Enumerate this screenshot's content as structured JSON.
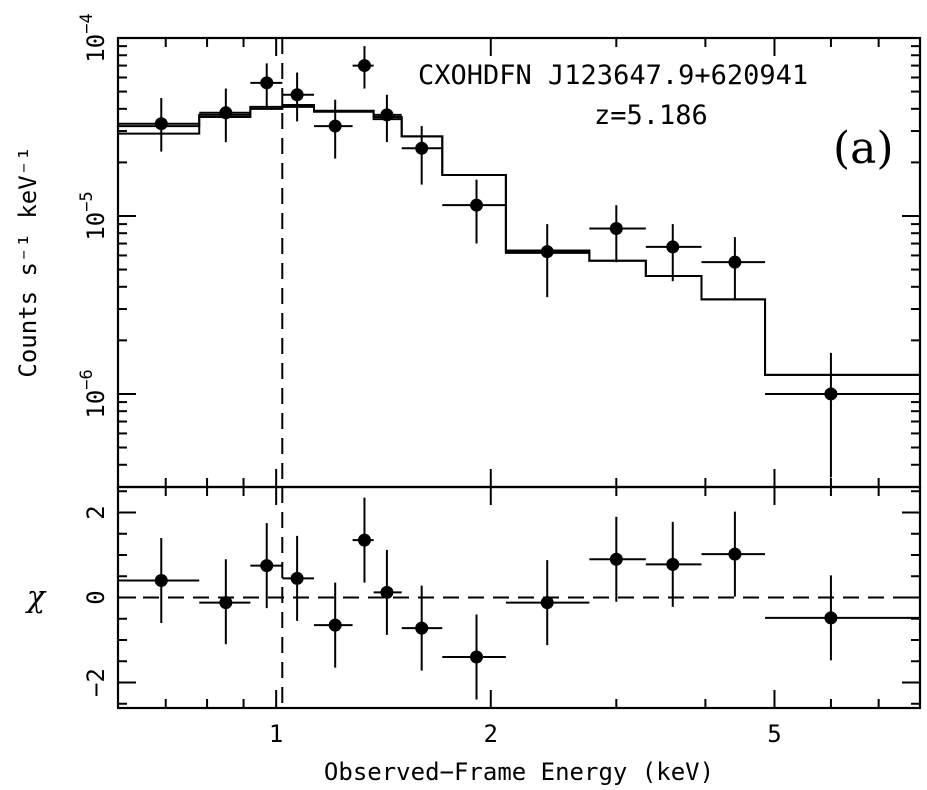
{
  "chart_data": [
    {
      "panel": "spectrum",
      "type": "scatter",
      "ylabel": "Counts s⁻¹ keV⁻¹",
      "ytick_base": "10",
      "yticks": [
        {
          "value": 1e-06,
          "exp": "−6"
        },
        {
          "value": 1e-05,
          "exp": "−5"
        },
        {
          "value": 0.0001,
          "exp": "−4"
        }
      ],
      "ylim": [
        3e-07,
        0.0001
      ],
      "yscale": "log",
      "xscale": "log",
      "xlim": [
        0.6,
        8.0
      ],
      "annotations": {
        "source": "CXOHDFN J123647.9+620941",
        "redshift": "z=5.186",
        "panel_label": "(a)"
      },
      "vline_x": 1.02,
      "series": [
        {
          "kind": "data_points",
          "points": [
            {
              "x": 0.69,
              "xlo": 0.6,
              "xhi": 0.78,
              "y": 3.3e-05,
              "ylo": 2.3e-05,
              "yhi": 4.6e-05
            },
            {
              "x": 0.85,
              "xlo": 0.78,
              "xhi": 0.92,
              "y": 3.8e-05,
              "ylo": 2.6e-05,
              "yhi": 5.2e-05
            },
            {
              "x": 0.97,
              "xlo": 0.92,
              "xhi": 1.02,
              "y": 5.6e-05,
              "ylo": 4e-05,
              "yhi": 7.2e-05
            },
            {
              "x": 1.07,
              "xlo": 1.02,
              "xhi": 1.13,
              "y": 4.8e-05,
              "ylo": 3.4e-05,
              "yhi": 6.4e-05
            },
            {
              "x": 1.21,
              "xlo": 1.13,
              "xhi": 1.28,
              "y": 3.2e-05,
              "ylo": 2.1e-05,
              "yhi": 4.5e-05
            },
            {
              "x": 1.33,
              "xlo": 1.28,
              "xhi": 1.37,
              "y": 7e-05,
              "ylo": 5.2e-05,
              "yhi": 9e-05
            },
            {
              "x": 1.43,
              "xlo": 1.37,
              "xhi": 1.5,
              "y": 3.7e-05,
              "ylo": 2.6e-05,
              "yhi": 4.8e-05
            },
            {
              "x": 1.6,
              "xlo": 1.5,
              "xhi": 1.71,
              "y": 2.4e-05,
              "ylo": 1.5e-05,
              "yhi": 3.2e-05
            },
            {
              "x": 1.91,
              "xlo": 1.71,
              "xhi": 2.1,
              "y": 1.15e-05,
              "ylo": 7e-06,
              "yhi": 1.6e-05
            },
            {
              "x": 2.4,
              "xlo": 2.1,
              "xhi": 2.75,
              "y": 6.3e-06,
              "ylo": 3.5e-06,
              "yhi": 9e-06
            },
            {
              "x": 3.0,
              "xlo": 2.75,
              "xhi": 3.3,
              "y": 8.5e-06,
              "ylo": 5.5e-06,
              "yhi": 1.15e-05
            },
            {
              "x": 3.6,
              "xlo": 3.3,
              "xhi": 3.95,
              "y": 6.7e-06,
              "ylo": 4.3e-06,
              "yhi": 9e-06
            },
            {
              "x": 4.4,
              "xlo": 3.95,
              "xhi": 4.85,
              "y": 5.5e-06,
              "ylo": 3.4e-06,
              "yhi": 7.6e-06
            },
            {
              "x": 6.0,
              "xlo": 4.85,
              "xhi": 8.0,
              "y": 1e-06,
              "ylo": 3.4e-07,
              "yhi": 1.7e-06
            }
          ]
        },
        {
          "kind": "model_step_upper",
          "steps": [
            {
              "x0": 0.6,
              "x1": 0.78,
              "y": 3.2e-05
            },
            {
              "x0": 0.78,
              "x1": 0.92,
              "y": 3.7e-05
            },
            {
              "x0": 0.92,
              "x1": 1.02,
              "y": 4.1e-05
            },
            {
              "x0": 1.02,
              "x1": 1.13,
              "y": 4.2e-05
            },
            {
              "x0": 1.13,
              "x1": 1.37,
              "y": 3.9e-05
            },
            {
              "x0": 1.37,
              "x1": 1.5,
              "y": 3.6e-05
            },
            {
              "x0": 1.5,
              "x1": 1.71,
              "y": 2.8e-05
            },
            {
              "x0": 1.71,
              "x1": 2.1,
              "y": 1.7e-05
            },
            {
              "x0": 2.1,
              "x1": 2.75,
              "y": 6.2e-06
            },
            {
              "x0": 2.75,
              "x1": 3.3,
              "y": 5.6e-06
            },
            {
              "x0": 3.3,
              "x1": 3.95,
              "y": 4.6e-06
            },
            {
              "x0": 3.95,
              "x1": 4.85,
              "y": 3.4e-06
            },
            {
              "x0": 4.85,
              "x1": 8.0,
              "y": 1.28e-06
            }
          ]
        },
        {
          "kind": "model_step_lower",
          "steps": [
            {
              "x0": 0.6,
              "x1": 0.78,
              "y": 2.9e-05
            },
            {
              "x0": 0.78,
              "x1": 0.92,
              "y": 3.6e-05
            },
            {
              "x0": 0.92,
              "x1": 1.02,
              "y": 4e-05
            },
            {
              "x0": 1.02,
              "x1": 1.13,
              "y": 4.1e-05
            },
            {
              "x0": 1.13,
              "x1": 1.37,
              "y": 3.85e-05
            },
            {
              "x0": 1.37,
              "x1": 1.5,
              "y": 3.5e-05
            },
            {
              "x0": 1.5,
              "x1": 1.71,
              "y": 2.8e-05
            },
            {
              "x0": 1.71,
              "x1": 2.1,
              "y": 1.7e-05
            },
            {
              "x0": 2.1,
              "x1": 2.75,
              "y": 6.4e-06
            },
            {
              "x0": 2.75,
              "x1": 3.3,
              "y": 5.6e-06
            },
            {
              "x0": 3.3,
              "x1": 3.95,
              "y": 4.6e-06
            },
            {
              "x0": 3.95,
              "x1": 4.85,
              "y": 3.4e-06
            },
            {
              "x0": 4.85,
              "x1": 8.0,
              "y": 1.28e-06
            }
          ]
        }
      ]
    },
    {
      "panel": "residuals",
      "type": "scatter",
      "ylabel": "χ",
      "xlabel": "Observed−Frame Energy (keV)",
      "xscale": "log",
      "xlim": [
        0.6,
        8.0
      ],
      "xticks": [
        {
          "value": 1,
          "label": "1"
        },
        {
          "value": 2,
          "label": "2"
        },
        {
          "value": 5,
          "label": "5"
        }
      ],
      "ylim": [
        -2.6,
        2.6
      ],
      "yticks": [
        {
          "value": 2,
          "label": "2"
        },
        {
          "value": 0,
          "label": "0"
        },
        {
          "value": -2,
          "label": "−2"
        }
      ],
      "hline_y": 0,
      "vline_x": 1.02,
      "points": [
        {
          "x": 0.69,
          "xlo": 0.6,
          "xhi": 0.78,
          "y": 0.4,
          "ylo": -0.6,
          "yhi": 1.4
        },
        {
          "x": 0.85,
          "xlo": 0.78,
          "xhi": 0.92,
          "y": -0.12,
          "ylo": -1.1,
          "yhi": 0.9
        },
        {
          "x": 0.97,
          "xlo": 0.92,
          "xhi": 1.02,
          "y": 0.75,
          "ylo": -0.25,
          "yhi": 1.75
        },
        {
          "x": 1.07,
          "xlo": 1.02,
          "xhi": 1.13,
          "y": 0.45,
          "ylo": -0.55,
          "yhi": 1.45
        },
        {
          "x": 1.21,
          "xlo": 1.13,
          "xhi": 1.28,
          "y": -0.65,
          "ylo": -1.65,
          "yhi": 0.35
        },
        {
          "x": 1.33,
          "xlo": 1.28,
          "xhi": 1.37,
          "y": 1.35,
          "ylo": 0.35,
          "yhi": 2.35
        },
        {
          "x": 1.43,
          "xlo": 1.37,
          "xhi": 1.5,
          "y": 0.12,
          "ylo": -0.88,
          "yhi": 1.12
        },
        {
          "x": 1.6,
          "xlo": 1.5,
          "xhi": 1.71,
          "y": -0.72,
          "ylo": -1.72,
          "yhi": 0.28
        },
        {
          "x": 1.91,
          "xlo": 1.71,
          "xhi": 2.1,
          "y": -1.4,
          "ylo": -2.4,
          "yhi": -0.4
        },
        {
          "x": 2.4,
          "xlo": 2.1,
          "xhi": 2.75,
          "y": -0.12,
          "ylo": -1.12,
          "yhi": 0.88
        },
        {
          "x": 3.0,
          "xlo": 2.75,
          "xhi": 3.3,
          "y": 0.9,
          "ylo": -0.1,
          "yhi": 1.9
        },
        {
          "x": 3.6,
          "xlo": 3.3,
          "xhi": 3.95,
          "y": 0.78,
          "ylo": -0.22,
          "yhi": 1.78
        },
        {
          "x": 4.4,
          "xlo": 3.95,
          "xhi": 4.85,
          "y": 1.02,
          "ylo": 0.02,
          "yhi": 2.02
        },
        {
          "x": 6.0,
          "xlo": 4.85,
          "xhi": 8.0,
          "y": -0.48,
          "ylo": -1.48,
          "yhi": 0.52
        }
      ]
    }
  ]
}
